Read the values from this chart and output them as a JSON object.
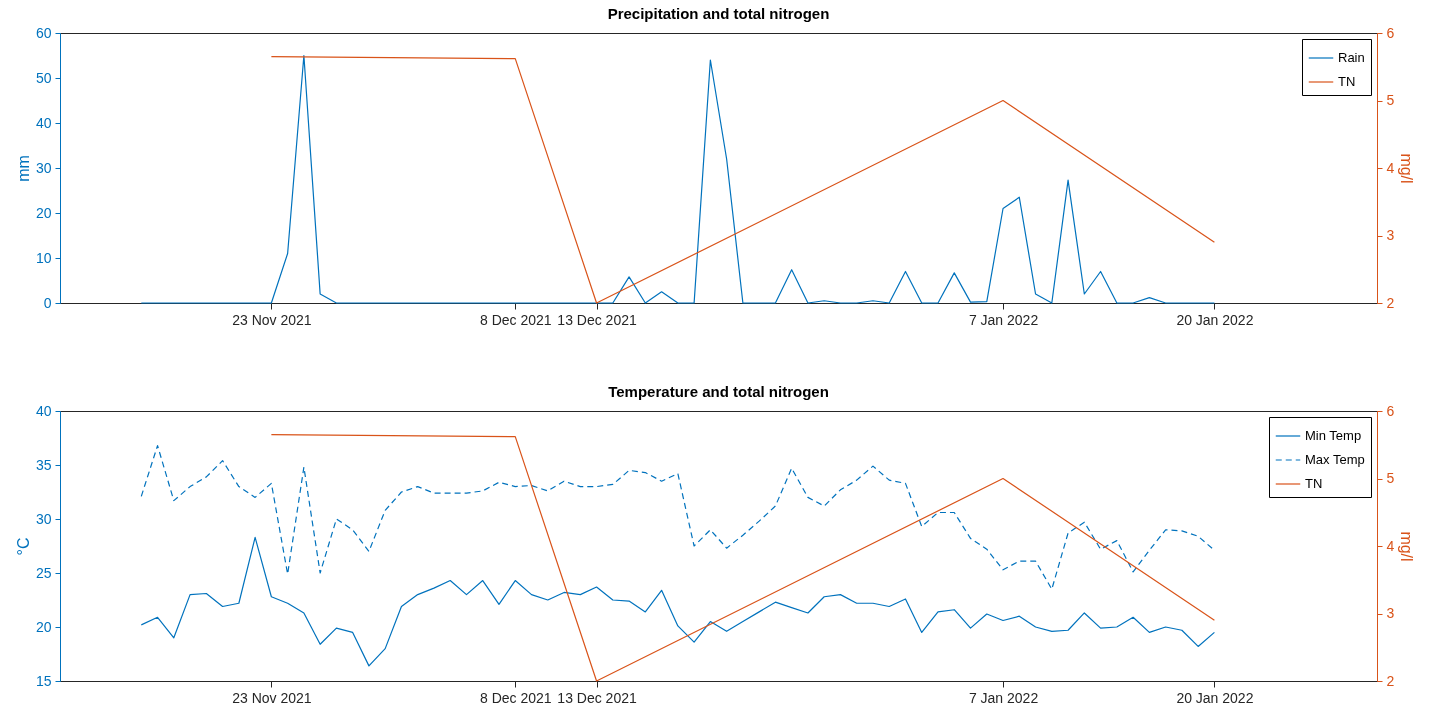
{
  "chart_data": [
    {
      "type": "line",
      "title": "Precipitation and total nitrogen",
      "ylabel": "mm",
      "y2label": "mg/l",
      "legend": "top right",
      "grid": false,
      "xlim": [
        "2021-11-10",
        "2022-01-30"
      ],
      "xticks": [
        {
          "value": "2021-11-23",
          "label": "23 Nov 2021"
        },
        {
          "value": "2021-12-08",
          "label": "8 Dec 2021"
        },
        {
          "value": "2021-12-13",
          "label": "13 Dec 2021"
        },
        {
          "value": "2022-01-07",
          "label": "7 Jan 2022"
        },
        {
          "value": "2022-01-20",
          "label": "20 Jan 2022"
        }
      ],
      "ylim": [
        0,
        60
      ],
      "yticks": [
        0,
        10,
        20,
        30,
        40,
        50,
        60
      ],
      "y2lim": [
        2,
        6
      ],
      "y2ticks": [
        2,
        3,
        4,
        5,
        6
      ],
      "x": [
        "2021-11-15",
        "2021-11-16",
        "2021-11-17",
        "2021-11-18",
        "2021-11-19",
        "2021-11-20",
        "2021-11-21",
        "2021-11-22",
        "2021-11-23",
        "2021-11-24",
        "2021-11-25",
        "2021-11-26",
        "2021-11-27",
        "2021-11-28",
        "2021-11-29",
        "2021-11-30",
        "2021-12-01",
        "2021-12-02",
        "2021-12-03",
        "2021-12-04",
        "2021-12-05",
        "2021-12-06",
        "2021-12-07",
        "2021-12-08",
        "2021-12-09",
        "2021-12-10",
        "2021-12-11",
        "2021-12-12",
        "2021-12-13",
        "2021-12-14",
        "2021-12-15",
        "2021-12-16",
        "2021-12-17",
        "2021-12-18",
        "2021-12-19",
        "2021-12-20",
        "2021-12-21",
        "2021-12-22",
        "2021-12-23",
        "2021-12-24",
        "2021-12-25",
        "2021-12-26",
        "2021-12-27",
        "2021-12-28",
        "2021-12-29",
        "2021-12-30",
        "2021-12-31",
        "2022-01-01",
        "2022-01-02",
        "2022-01-03",
        "2022-01-04",
        "2022-01-05",
        "2022-01-06",
        "2022-01-07",
        "2022-01-08",
        "2022-01-09",
        "2022-01-10",
        "2022-01-11",
        "2022-01-12",
        "2022-01-13",
        "2022-01-14",
        "2022-01-15",
        "2022-01-16",
        "2022-01-17",
        "2022-01-18",
        "2022-01-19",
        "2022-01-20"
      ],
      "series": [
        {
          "name": "Rain",
          "color": "#0072bd",
          "values": [
            0,
            0,
            0,
            0,
            0,
            0,
            0,
            0,
            0,
            11,
            55,
            2,
            0,
            0,
            0,
            0,
            0,
            0,
            0,
            0,
            0,
            0,
            0,
            0,
            0,
            0,
            0,
            0,
            0,
            0,
            5.8,
            0,
            2.5,
            0,
            0,
            54,
            32,
            0,
            0,
            0,
            7.4,
            0,
            0.5,
            0,
            0,
            0.5,
            0,
            7,
            0,
            0,
            6.7,
            0.2,
            0.3,
            21,
            23.5,
            2,
            0,
            27.3,
            2,
            7,
            0,
            0,
            1.2,
            0,
            0,
            0,
            0
          ]
        },
        {
          "name": "TN",
          "color": "#d95319",
          "axis": "y2",
          "x": [
            "2021-11-23",
            "2021-12-08",
            "2021-12-13",
            "2022-01-07",
            "2022-01-20"
          ],
          "values": [
            5.65,
            5.62,
            2,
            5,
            2.9
          ]
        }
      ]
    },
    {
      "type": "line",
      "title": "Temperature and total nitrogen",
      "ylabel": "°C",
      "y2label": "mg/l",
      "legend": "top right",
      "grid": false,
      "xlim": [
        "2021-11-10",
        "2022-01-30"
      ],
      "xticks": [
        {
          "value": "2021-11-23",
          "label": "23 Nov 2021"
        },
        {
          "value": "2021-12-08",
          "label": "8 Dec 2021"
        },
        {
          "value": "2021-12-13",
          "label": "13 Dec 2021"
        },
        {
          "value": "2022-01-07",
          "label": "7 Jan 2022"
        },
        {
          "value": "2022-01-20",
          "label": "20 Jan 2022"
        }
      ],
      "ylim": [
        15,
        40
      ],
      "yticks": [
        15,
        20,
        25,
        30,
        35,
        40
      ],
      "y2lim": [
        2,
        6
      ],
      "y2ticks": [
        2,
        3,
        4,
        5,
        6
      ],
      "x": [
        "2021-11-15",
        "2021-11-16",
        "2021-11-17",
        "2021-11-18",
        "2021-11-19",
        "2021-11-20",
        "2021-11-21",
        "2021-11-22",
        "2021-11-23",
        "2021-11-24",
        "2021-11-25",
        "2021-11-26",
        "2021-11-27",
        "2021-11-28",
        "2021-11-29",
        "2021-11-30",
        "2021-12-01",
        "2021-12-02",
        "2021-12-03",
        "2021-12-04",
        "2021-12-05",
        "2021-12-06",
        "2021-12-07",
        "2021-12-08",
        "2021-12-09",
        "2021-12-10",
        "2021-12-11",
        "2021-12-12",
        "2021-12-13",
        "2021-12-14",
        "2021-12-15",
        "2021-12-16",
        "2021-12-17",
        "2021-12-18",
        "2021-12-19",
        "2021-12-20",
        "2021-12-21",
        "2021-12-22",
        "2021-12-23",
        "2021-12-24",
        "2021-12-25",
        "2021-12-26",
        "2021-12-27",
        "2021-12-28",
        "2021-12-29",
        "2021-12-30",
        "2021-12-31",
        "2022-01-01",
        "2022-01-02",
        "2022-01-03",
        "2022-01-04",
        "2022-01-05",
        "2022-01-06",
        "2022-01-07",
        "2022-01-08",
        "2022-01-09",
        "2022-01-10",
        "2022-01-11",
        "2022-01-12",
        "2022-01-13",
        "2022-01-14",
        "2022-01-15",
        "2022-01-16",
        "2022-01-17",
        "2022-01-18",
        "2022-01-19",
        "2022-01-20"
      ],
      "series": [
        {
          "name": "Min Temp",
          "color": "#0072bd",
          "values": [
            20.2,
            20.9,
            19,
            23,
            23.1,
            21.9,
            22.2,
            28.3,
            22.8,
            22.2,
            21.3,
            18.4,
            19.9,
            19.5,
            16.4,
            18,
            21.9,
            23,
            23.6,
            24.3,
            23,
            24.3,
            22.1,
            24.3,
            23,
            22.5,
            23.2,
            23,
            23.7,
            22.5,
            22.4,
            21.4,
            23.4,
            20.1,
            18.6,
            20.5,
            19.6,
            20.5,
            21.4,
            22.3,
            21.8,
            21.3,
            22.8,
            23,
            22.2,
            22.2,
            21.9,
            22.6,
            19.5,
            21.4,
            21.6,
            19.9,
            21.2,
            20.6,
            21,
            20,
            19.6,
            19.7,
            21.3,
            19.9,
            20,
            20.9,
            19.5,
            20,
            19.7,
            18.2,
            19.5
          ]
        },
        {
          "name": "Max Temp",
          "color": "#0072bd",
          "line_style": "dashed",
          "values": [
            32.1,
            36.8,
            31.7,
            33,
            33.9,
            35.4,
            33,
            32,
            33.3,
            24.9,
            34.8,
            25,
            30,
            29,
            27,
            30.8,
            32.5,
            33,
            32.4,
            32.4,
            32.4,
            32.6,
            33.4,
            33,
            33.1,
            32.6,
            33.5,
            33,
            33,
            33.2,
            34.5,
            34.3,
            33.5,
            34.2,
            27.5,
            29,
            27.3,
            28.5,
            29.8,
            31.2,
            34.7,
            32,
            31.2,
            32.7,
            33.6,
            34.9,
            33.6,
            33.3,
            29.3,
            30.6,
            30.6,
            28.2,
            27.2,
            25.3,
            26.1,
            26.1,
            23.5,
            28.7,
            29.7,
            27.2,
            28,
            25.1,
            27.1,
            29,
            28.9,
            28.4,
            27.1
          ]
        },
        {
          "name": "TN",
          "color": "#d95319",
          "axis": "y2",
          "x": [
            "2021-11-23",
            "2021-12-08",
            "2021-12-13",
            "2022-01-07",
            "2022-01-20"
          ],
          "values": [
            5.65,
            5.62,
            2,
            5,
            2.9
          ]
        }
      ]
    }
  ]
}
